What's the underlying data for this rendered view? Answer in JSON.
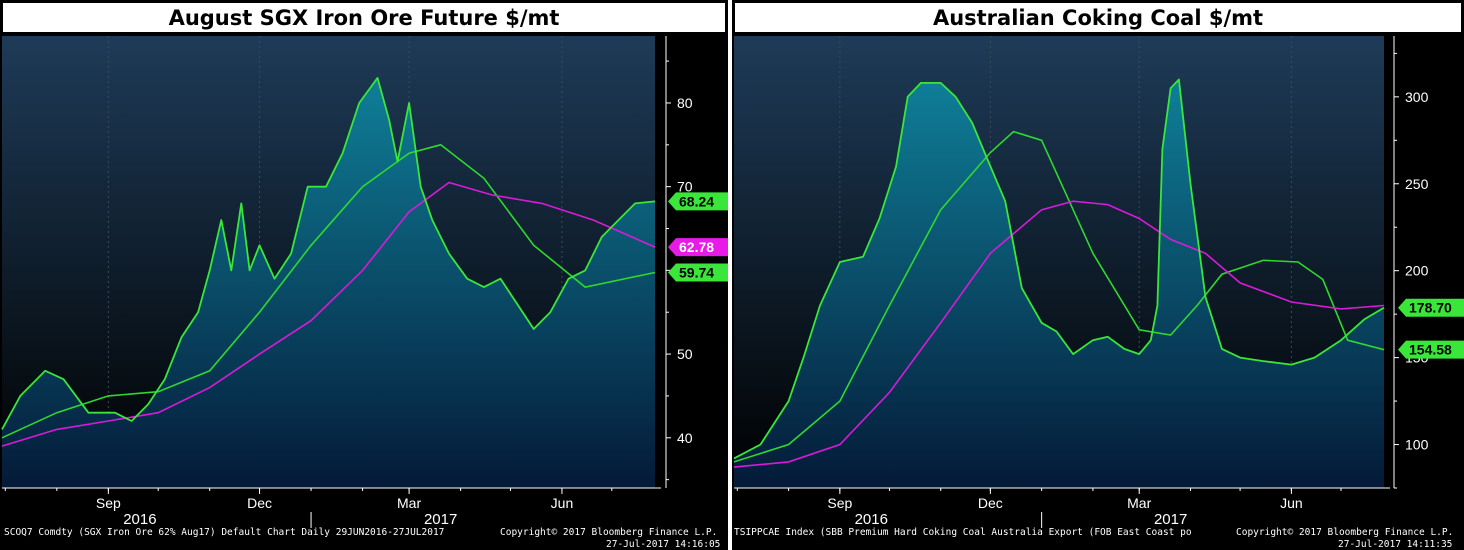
{
  "chart_data": [
    {
      "type": "area",
      "title": "August SGX Iron Ore Future $/mt",
      "ylim": [
        34,
        88
      ],
      "y_ticks": [
        40,
        50,
        60,
        70,
        80
      ],
      "x_range": [
        "2016-06-29",
        "2017-07-27"
      ],
      "month_ticks": [
        {
          "label": "Sep",
          "date": "2016-09-01"
        },
        {
          "label": "Dec",
          "date": "2016-12-01"
        },
        {
          "label": "Mar",
          "date": "2017-03-01"
        },
        {
          "label": "Jun",
          "date": "2017-06-01"
        }
      ],
      "year_labels": [
        {
          "label": "2016",
          "date": "2016-09-20"
        },
        {
          "label": "2017",
          "date": "2017-03-20"
        }
      ],
      "year_divider": "2017-01-01",
      "series": [
        {
          "role": "price",
          "color": "#39e639",
          "x": [
            "2016-06-29",
            "2016-07-10",
            "2016-07-25",
            "2016-08-05",
            "2016-08-20",
            "2016-09-05",
            "2016-09-15",
            "2016-09-25",
            "2016-10-05",
            "2016-10-15",
            "2016-10-25",
            "2016-11-01",
            "2016-11-08",
            "2016-11-14",
            "2016-11-20",
            "2016-11-25",
            "2016-12-01",
            "2016-12-10",
            "2016-12-20",
            "2016-12-30",
            "2017-01-10",
            "2017-01-20",
            "2017-01-30",
            "2017-02-10",
            "2017-02-17",
            "2017-02-22",
            "2017-03-01",
            "2017-03-08",
            "2017-03-15",
            "2017-03-25",
            "2017-04-05",
            "2017-04-15",
            "2017-04-25",
            "2017-05-05",
            "2017-05-15",
            "2017-05-25",
            "2017-06-05",
            "2017-06-15",
            "2017-06-25",
            "2017-07-05",
            "2017-07-15",
            "2017-07-27"
          ],
          "values": [
            41,
            45,
            48,
            47,
            43,
            43,
            42,
            44,
            47,
            52,
            55,
            60,
            66,
            60,
            68,
            60,
            63,
            59,
            62,
            70,
            70,
            74,
            80,
            83,
            78,
            73,
            80,
            70,
            66,
            62,
            59,
            58,
            59,
            56,
            53,
            55,
            59,
            60,
            64,
            66,
            68,
            68.24
          ]
        },
        {
          "role": "moving-average-short",
          "color": "#2fd82f",
          "x": [
            "2016-06-29",
            "2016-08-01",
            "2016-09-01",
            "2016-10-01",
            "2016-11-01",
            "2016-12-01",
            "2017-01-01",
            "2017-02-01",
            "2017-03-01",
            "2017-03-20",
            "2017-04-15",
            "2017-05-15",
            "2017-06-15",
            "2017-07-27"
          ],
          "values": [
            40,
            43,
            45,
            45.5,
            48,
            55,
            63,
            70,
            74,
            75,
            71,
            63,
            58,
            59.74
          ]
        },
        {
          "role": "moving-average-long",
          "color": "#d91bd9",
          "x": [
            "2016-06-29",
            "2016-08-01",
            "2016-09-01",
            "2016-10-01",
            "2016-11-01",
            "2016-12-01",
            "2017-01-01",
            "2017-02-01",
            "2017-03-01",
            "2017-03-25",
            "2017-04-20",
            "2017-05-20",
            "2017-06-20",
            "2017-07-27"
          ],
          "values": [
            39,
            41,
            42,
            43,
            46,
            50,
            54,
            60,
            67,
            70.5,
            69,
            68,
            66,
            62.78
          ]
        }
      ],
      "last_value_labels": [
        {
          "text": "68.24",
          "value": 68.24,
          "bg": "#39e639",
          "fg": "#000000"
        },
        {
          "text": "62.78",
          "value": 62.78,
          "bg": "#e81ae8",
          "fg": "#ffffff"
        },
        {
          "text": "59.74",
          "value": 59.74,
          "bg": "#39e639",
          "fg": "#000000"
        }
      ],
      "footer": {
        "left": "SCOQ7 Comdty (SGX Iron Ore 62% Aug17) Default Chart  Daily 29JUN2016-27JUL2017",
        "right": "Copyright© 2017 Bloomberg Finance L.P.",
        "date": "27-Jul-2017 14:16:05"
      }
    },
    {
      "type": "area",
      "title": "Australian Coking Coal $/mt",
      "ylim": [
        75,
        335
      ],
      "y_ticks": [
        100,
        150,
        200,
        250,
        300
      ],
      "x_range": [
        "2016-06-29",
        "2017-07-27"
      ],
      "month_ticks": [
        {
          "label": "Sep",
          "date": "2016-09-01"
        },
        {
          "label": "Dec",
          "date": "2016-12-01"
        },
        {
          "label": "Mar",
          "date": "2017-03-01"
        },
        {
          "label": "Jun",
          "date": "2017-06-01"
        }
      ],
      "year_labels": [
        {
          "label": "2016",
          "date": "2016-09-20"
        },
        {
          "label": "2017",
          "date": "2017-03-20"
        }
      ],
      "year_divider": "2017-01-01",
      "series": [
        {
          "role": "price",
          "color": "#39e639",
          "x": [
            "2016-06-29",
            "2016-07-15",
            "2016-08-01",
            "2016-08-10",
            "2016-08-20",
            "2016-09-01",
            "2016-09-15",
            "2016-09-25",
            "2016-10-05",
            "2016-10-12",
            "2016-10-20",
            "2016-11-01",
            "2016-11-10",
            "2016-11-20",
            "2016-12-01",
            "2016-12-10",
            "2016-12-20",
            "2017-01-01",
            "2017-01-10",
            "2017-01-20",
            "2017-02-01",
            "2017-02-10",
            "2017-02-20",
            "2017-03-01",
            "2017-03-08",
            "2017-03-12",
            "2017-03-15",
            "2017-03-20",
            "2017-03-25",
            "2017-04-01",
            "2017-04-10",
            "2017-04-20",
            "2017-05-01",
            "2017-05-15",
            "2017-06-01",
            "2017-06-15",
            "2017-07-01",
            "2017-07-15",
            "2017-07-27"
          ],
          "values": [
            92,
            100,
            125,
            150,
            180,
            205,
            208,
            230,
            260,
            300,
            308,
            308,
            300,
            285,
            260,
            240,
            190,
            170,
            165,
            152,
            160,
            162,
            155,
            152,
            160,
            180,
            270,
            305,
            310,
            250,
            185,
            155,
            150,
            148,
            146,
            150,
            160,
            172,
            178.7
          ]
        },
        {
          "role": "moving-average-short",
          "color": "#2fd82f",
          "x": [
            "2016-06-29",
            "2016-08-01",
            "2016-09-01",
            "2016-10-01",
            "2016-11-01",
            "2016-12-01",
            "2016-12-15",
            "2017-01-01",
            "2017-02-01",
            "2017-03-01",
            "2017-03-20",
            "2017-04-05",
            "2017-04-20",
            "2017-05-15",
            "2017-06-05",
            "2017-06-20",
            "2017-07-05",
            "2017-07-27"
          ],
          "values": [
            90,
            100,
            125,
            180,
            235,
            268,
            280,
            275,
            210,
            166,
            163,
            180,
            198,
            206,
            205,
            195,
            160,
            154.58
          ]
        },
        {
          "role": "moving-average-long",
          "color": "#d91bd9",
          "x": [
            "2016-06-29",
            "2016-08-01",
            "2016-09-01",
            "2016-10-01",
            "2016-11-01",
            "2016-12-01",
            "2017-01-01",
            "2017-01-20",
            "2017-02-10",
            "2017-03-01",
            "2017-03-20",
            "2017-04-10",
            "2017-05-01",
            "2017-06-01",
            "2017-07-01",
            "2017-07-27"
          ],
          "values": [
            87,
            90,
            100,
            130,
            170,
            210,
            235,
            240,
            238,
            230,
            218,
            210,
            193,
            182,
            178,
            180
          ]
        }
      ],
      "last_value_labels": [
        {
          "text": "178.70",
          "value": 178.7,
          "bg": "#39e639",
          "fg": "#000000"
        },
        {
          "text": "154.58",
          "value": 154.58,
          "bg": "#39e639",
          "fg": "#000000"
        }
      ],
      "footer": {
        "left": "TSIPPCAE Index (SBB Premium Hard Coking Coal Australia Export (FOB East Coast po",
        "right": "Copyright© 2017 Bloomberg Finance L.P.",
        "date": "27-Jul-2017 14:11:35"
      }
    }
  ],
  "colors": {
    "area_top": "#0f7f98",
    "area_bottom": "#041a38",
    "background_top": "#1e3b58",
    "background_bottom": "#000000",
    "axis_text": "#ffffff",
    "grid": "#3a4a5c"
  }
}
